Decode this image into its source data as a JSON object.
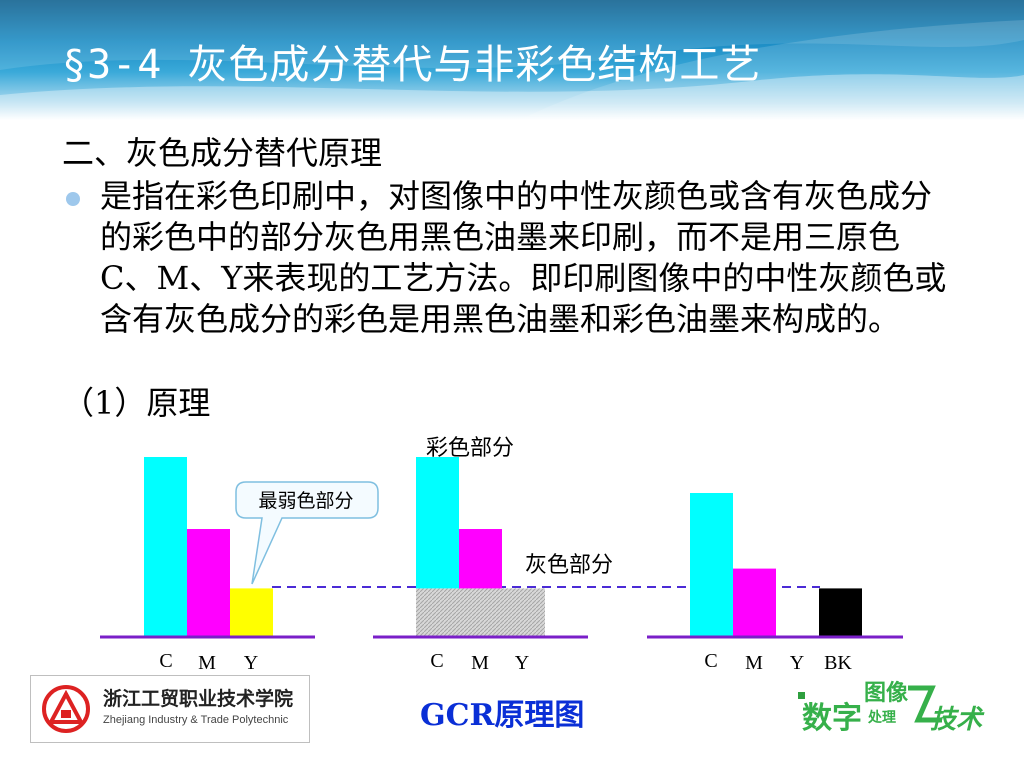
{
  "slide": {
    "title": "§3-4   灰色成分替代与非彩色结构工艺",
    "heading": "二、灰色成分替代原理",
    "paragraph": "是指在彩色印刷中，对图像中的中性灰颜色或含有灰色成分的彩色中的部分灰色用黑色油墨来印刷，而不是用三原色C、M、Y来表现的工艺方法。即印刷图像中的中性灰颜色或含有灰色成分的彩色是用黑色油墨和彩色油墨来构成的。",
    "subheading": "（1）原理",
    "caption": "GCR原理图"
  },
  "diagram": {
    "callout_label": "最弱色部分",
    "color_part_label": "彩色部分",
    "gray_part_label": "灰色部分",
    "groups": [
      {
        "axis_labels": [
          "C",
          "M",
          "Y"
        ],
        "bars": [
          {
            "ink": "C",
            "value": 100,
            "color": "#00ffff"
          },
          {
            "ink": "M",
            "value": 60,
            "color": "#ff00ff"
          },
          {
            "ink": "Y",
            "value": 27,
            "color": "#ffff00"
          }
        ]
      },
      {
        "axis_labels": [
          "C",
          "M",
          "Y"
        ],
        "bars": [
          {
            "ink": "C",
            "value": 100,
            "color": "#00ffff",
            "gray_base": 27
          },
          {
            "ink": "M",
            "value": 60,
            "color": "#ff00ff",
            "gray_base": 27
          },
          {
            "ink": "Y",
            "value": 27,
            "color": "#ffff00",
            "gray_base": 27
          }
        ]
      },
      {
        "axis_labels": [
          "C",
          "M",
          "Y",
          "BK"
        ],
        "bars": [
          {
            "ink": "C",
            "value": 80,
            "color": "#00ffff"
          },
          {
            "ink": "M",
            "value": 38,
            "color": "#ff00ff"
          },
          {
            "ink": "Y",
            "value": 0,
            "color": "#ffff00"
          },
          {
            "ink": "BK",
            "value": 27,
            "color": "#000000"
          }
        ]
      }
    ],
    "colors": {
      "axis": "#7a1fc8",
      "dashed_line": "#4b2bd6",
      "gray_hatch": "#bdbdbd",
      "callout_border": "#7fbfe0",
      "callout_fill": "#f4fbff"
    }
  },
  "footer": {
    "school_name_cn": "浙江工贸职业技术学院",
    "school_name_en": "Zhejiang Industry & Trade Polytechnic",
    "brand_text_1": "数字",
    "brand_text_2": "图像",
    "brand_text_3": "处理",
    "brand_text_4": "技术"
  }
}
